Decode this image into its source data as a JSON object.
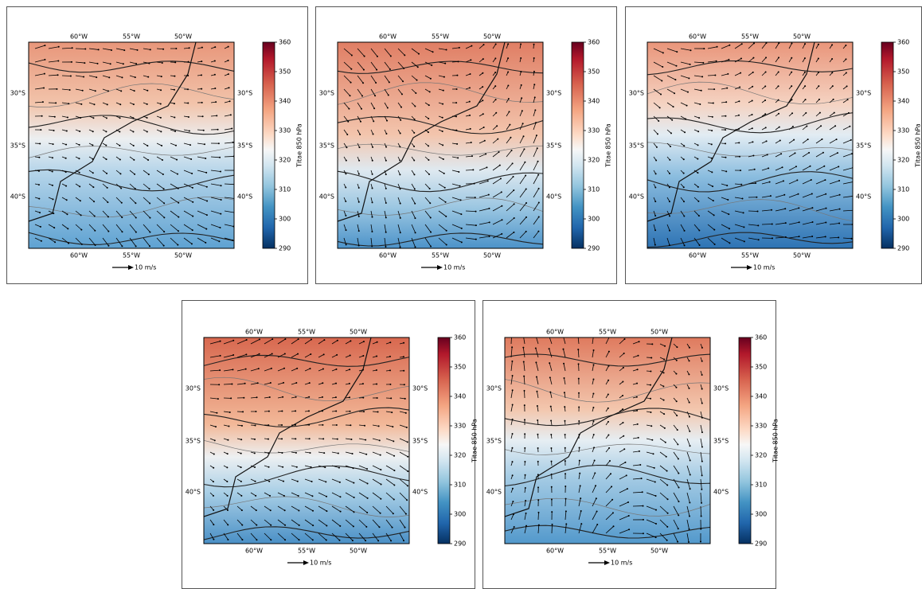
{
  "panels": [
    {
      "lon_labels": [
        "60°W",
        "55°W",
        "50°W"
      ],
      "lat_labels": [
        "30°S",
        "35°S",
        "40°S"
      ],
      "colorbar": {
        "label": "Titae 850 hPa",
        "range": [
          290,
          360
        ],
        "ticks": [
          290,
          300,
          310,
          320,
          330,
          340,
          350,
          360
        ]
      },
      "quiver_key": "10 m/s"
    },
    {
      "lon_labels": [
        "60°W",
        "55°W",
        "50°W"
      ],
      "lat_labels": [
        "30°S",
        "35°S",
        "40°S"
      ],
      "colorbar": {
        "label": "Titae 850 hPa",
        "range": [
          290,
          360
        ],
        "ticks": [
          290,
          300,
          310,
          320,
          330,
          340,
          350,
          360
        ]
      },
      "quiver_key": "10 m/s"
    },
    {
      "lon_labels": [
        "60°W",
        "55°W",
        "50°W"
      ],
      "lat_labels": [
        "30°S",
        "35°S",
        "40°S"
      ],
      "colorbar": {
        "label": "Titae 850 hPa",
        "range": [
          290,
          360
        ],
        "ticks": [
          290,
          300,
          310,
          320,
          330,
          340,
          350,
          360
        ]
      },
      "quiver_key": "10 m/s"
    },
    {
      "lon_labels": [
        "60°W",
        "55°W",
        "50°W"
      ],
      "lat_labels": [
        "30°S",
        "35°S",
        "40°S"
      ],
      "colorbar": {
        "label": "Titae 850 hPa",
        "range": [
          290,
          360
        ],
        "ticks": [
          290,
          300,
          310,
          320,
          330,
          340,
          350,
          360
        ]
      },
      "quiver_key": "10 m/s"
    },
    {
      "lon_labels": [
        "60°W",
        "55°W",
        "50°W"
      ],
      "lat_labels": [
        "30°S",
        "35°S",
        "40°S"
      ],
      "colorbar": {
        "label": "Titae 850 hPa",
        "range": [
          290,
          360
        ],
        "ticks": [
          290,
          300,
          310,
          320,
          330,
          340,
          350,
          360
        ]
      },
      "quiver_key": "10 m/s"
    }
  ]
}
